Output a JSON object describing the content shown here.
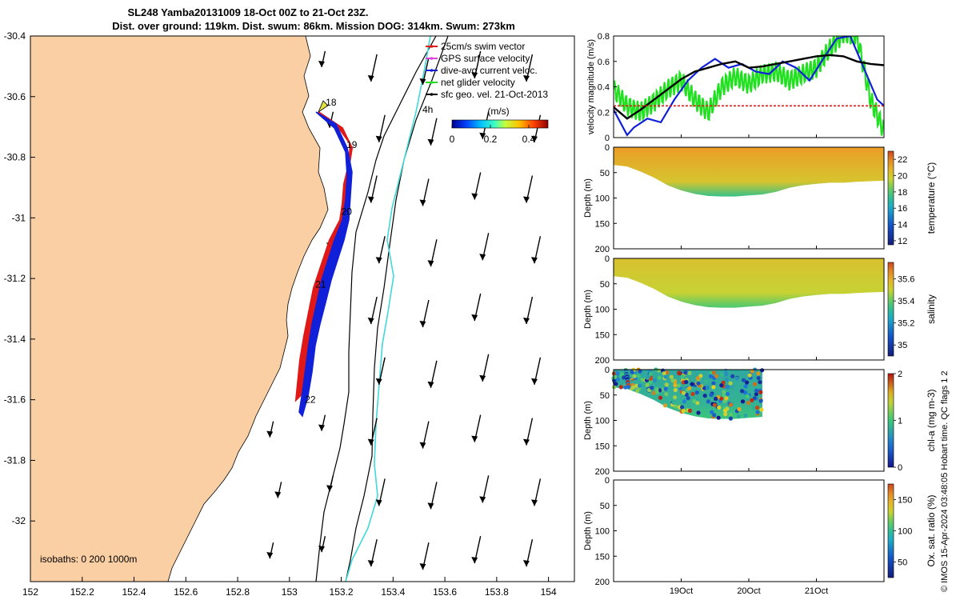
{
  "figure": {
    "title_line1": "SL248 Yamba20131009 18-Oct 00Z to 21-Oct 23Z.",
    "title_line2": "Dist. over ground: 119km. Dist. swum: 86km. Mission DOG: 314km. Swum: 273km",
    "side_note": "© IMOS 15-Apr-2024 03:48:05 Hobart time. QC flags 1  2"
  },
  "chart_data": [
    {
      "type": "scatter",
      "id": "map",
      "xlim": [
        152,
        154.1
      ],
      "ylim": [
        -32.2,
        -30.4
      ],
      "xticks": [
        152,
        152.2,
        152.4,
        152.6,
        152.8,
        153,
        153.2,
        153.4,
        153.6,
        153.8,
        154
      ],
      "xtick_labels": [
        "152",
        "152.2",
        "152.4",
        "152.6",
        "152.8",
        "153",
        "153.2",
        "153.4",
        "153.6",
        "153.8",
        "154"
      ],
      "yticks": [
        -30.4,
        -30.6,
        -30.8,
        -31,
        -31.2,
        -31.4,
        -31.6,
        -31.8,
        -32
      ],
      "ytick_labels": [
        "-30.4",
        "-30.6",
        "-30.8",
        "-31",
        "-31.2",
        "-31.4",
        "-31.6",
        "-31.8",
        "-32"
      ],
      "colors": {
        "land": "#fbcfa4",
        "isobath_200": "#000000",
        "isobath_1000": "#000000",
        "glider_red": "#e01818",
        "glider_blue": "#1020d8",
        "sfc_track": "#40d8d8"
      },
      "isobath_note": "isobaths: 0   200  1000m",
      "track_label": "4h",
      "day_labels": [
        {
          "text": "18",
          "lon": 153.14,
          "lat": -30.63
        },
        {
          "text": "19",
          "lon": 153.22,
          "lat": -30.77
        },
        {
          "text": "20",
          "lon": 153.2,
          "lat": -30.99
        },
        {
          "text": "21",
          "lon": 153.1,
          "lat": -31.23
        },
        {
          "text": "22",
          "lon": 153.06,
          "lat": -31.61
        }
      ],
      "legend": {
        "position": "top-right",
        "entries": [
          {
            "label": "25cm/s swim vector",
            "color": "#e01818"
          },
          {
            "label": "GPS surface velocity",
            "color": "#e040e0"
          },
          {
            "label": "dive-avg current veloc.",
            "color": "#1020d8"
          },
          {
            "label": "net glider velocity",
            "color": "#20e020"
          },
          {
            "label": "sfc geo. vel. 21-Oct-2013",
            "color": "#000000"
          }
        ]
      },
      "colorbar": {
        "label": "(m/s)",
        "ticks": [
          0,
          0.2,
          0.4
        ],
        "tick_labels": [
          "0",
          "0.2",
          "0.4"
        ],
        "range": [
          0,
          0.5
        ]
      }
    },
    {
      "type": "line",
      "id": "velocity",
      "ylabel": "velocity magnitude (m/s)",
      "xlim": [
        18.0,
        22.0
      ],
      "ylim": [
        0,
        0.8
      ],
      "yticks": [
        0,
        0.2,
        0.4,
        0.6,
        0.8
      ],
      "ytick_labels": [
        "0",
        "0.2",
        "0.4",
        "0.6",
        "0.8"
      ],
      "series": [
        {
          "color": "#20e020",
          "x": [
            18.0,
            18.2,
            18.4,
            18.6,
            18.8,
            19.0,
            19.2,
            19.4,
            19.6,
            19.8,
            20.0,
            20.2,
            20.4,
            20.6,
            20.8,
            21.0,
            21.2,
            21.4,
            21.6,
            21.8,
            22.0
          ],
          "values": [
            0.38,
            0.25,
            0.2,
            0.28,
            0.38,
            0.45,
            0.3,
            0.2,
            0.4,
            0.48,
            0.42,
            0.5,
            0.52,
            0.45,
            0.5,
            0.55,
            0.7,
            0.82,
            0.8,
            0.3,
            0.05
          ]
        },
        {
          "color": "#1020d8",
          "x": [
            18.0,
            18.2,
            18.3,
            18.5,
            18.7,
            18.9,
            19.1,
            19.3,
            19.5,
            19.7,
            19.9,
            20.1,
            20.3,
            20.5,
            20.7,
            20.9,
            21.1,
            21.3,
            21.5,
            21.7,
            21.9,
            22.0
          ],
          "values": [
            0.22,
            0.02,
            0.08,
            0.15,
            0.12,
            0.3,
            0.45,
            0.55,
            0.62,
            0.55,
            0.58,
            0.52,
            0.5,
            0.6,
            0.55,
            0.45,
            0.62,
            0.78,
            0.8,
            0.55,
            0.3,
            0.25
          ]
        },
        {
          "color": "#000000",
          "x": [
            18.0,
            18.2,
            18.4,
            18.6,
            18.8,
            19.0,
            19.2,
            19.4,
            19.6,
            19.8,
            20.0,
            20.2,
            20.4,
            20.6,
            20.8,
            21.0,
            21.2,
            21.4,
            21.6,
            21.8,
            22.0
          ],
          "values": [
            0.24,
            0.15,
            0.22,
            0.3,
            0.38,
            0.46,
            0.52,
            0.55,
            0.58,
            0.6,
            0.55,
            0.56,
            0.58,
            0.6,
            0.62,
            0.64,
            0.65,
            0.64,
            0.6,
            0.58,
            0.57
          ]
        },
        {
          "color": "#e01818",
          "x": [
            18.0,
            22.0
          ],
          "values": [
            0.25,
            0.25
          ]
        }
      ]
    },
    {
      "type": "heatmap",
      "id": "temperature",
      "ylabel": "Depth (m)",
      "clabel": "temperature (°C)",
      "ylim": [
        0,
        200
      ],
      "yticks": [
        0,
        50,
        100,
        150,
        200
      ],
      "ytick_labels": [
        "0",
        "50",
        "100",
        "150",
        "200"
      ],
      "crange": [
        11.5,
        23
      ],
      "cticks": [
        12,
        14,
        16,
        18,
        20,
        22
      ],
      "ctick_labels": [
        "12",
        "14",
        "16",
        "18",
        "20",
        "22"
      ],
      "x": [
        18.0,
        18.2,
        18.4,
        18.6,
        18.8,
        19.0,
        19.2,
        19.4,
        19.6,
        19.8,
        20.0,
        20.2,
        20.4,
        20.6,
        20.8,
        21.0,
        21.2,
        21.4,
        21.6,
        21.8,
        22.0
      ],
      "max_depth": [
        35,
        38,
        48,
        60,
        75,
        85,
        92,
        96,
        97,
        97,
        95,
        93,
        88,
        80,
        75,
        72,
        70,
        70,
        68,
        67,
        66
      ],
      "surface_value": 21.5,
      "bottom_value": 17.5
    },
    {
      "type": "heatmap",
      "id": "salinity",
      "ylabel": "Depth (m)",
      "clabel": "salinity",
      "ylim": [
        0,
        200
      ],
      "yticks": [
        0,
        50,
        100,
        150,
        200
      ],
      "ytick_labels": [
        "0",
        "50",
        "100",
        "150",
        "200"
      ],
      "crange": [
        34.9,
        35.75
      ],
      "cticks": [
        35,
        35.2,
        35.4,
        35.6
      ],
      "ctick_labels": [
        "35",
        "35.2",
        "35.4",
        "35.6"
      ],
      "x": [
        18.0,
        18.2,
        18.4,
        18.6,
        18.8,
        19.0,
        19.2,
        19.4,
        19.6,
        19.8,
        20.0,
        20.2,
        20.4,
        20.6,
        20.8,
        21.0,
        21.2,
        21.4,
        21.6,
        21.8,
        22.0
      ],
      "max_depth": [
        35,
        38,
        48,
        60,
        75,
        85,
        92,
        96,
        97,
        97,
        95,
        93,
        88,
        80,
        75,
        72,
        70,
        70,
        68,
        67,
        66
      ],
      "surface_value": 35.55,
      "bottom_value": 35.38
    },
    {
      "type": "heatmap",
      "id": "chla",
      "ylabel": "Depth (m)",
      "clabel": "chl-a (mg m-3)",
      "ylim": [
        0,
        200
      ],
      "yticks": [
        0,
        50,
        100,
        150,
        200
      ],
      "ytick_labels": [
        "0",
        "50",
        "100",
        "150",
        "200"
      ],
      "crange": [
        0,
        2
      ],
      "cticks": [
        0,
        1,
        2
      ],
      "ctick_labels": [
        "0",
        "1",
        "2"
      ],
      "x": [
        18.0,
        18.2,
        18.4,
        18.6,
        18.8,
        19.0,
        19.2,
        19.4,
        19.6,
        19.8,
        20.0,
        20.2
      ],
      "max_depth": [
        35,
        38,
        48,
        60,
        75,
        85,
        92,
        96,
        97,
        97,
        95,
        93
      ],
      "surface_value": 0.8,
      "bottom_value": 1.0
    },
    {
      "type": "heatmap",
      "id": "oxygen",
      "ylabel": "Depth (m)",
      "clabel": "Ox. sat. ratio (%)",
      "ylim": [
        0,
        200
      ],
      "yticks": [
        0,
        50,
        100,
        150,
        200
      ],
      "ytick_labels": [
        "0",
        "50",
        "100",
        "150",
        "200"
      ],
      "crange": [
        25,
        175
      ],
      "cticks": [
        50,
        100,
        150
      ],
      "ctick_labels": [
        "50",
        "100",
        "150"
      ],
      "x": [],
      "max_depth": []
    }
  ],
  "time_axis": {
    "xlim": [
      18.0,
      22.0
    ],
    "ticks": [
      19.0,
      20.0,
      21.0
    ],
    "tick_labels": [
      "19Oct",
      "20Oct",
      "21Oct"
    ]
  }
}
